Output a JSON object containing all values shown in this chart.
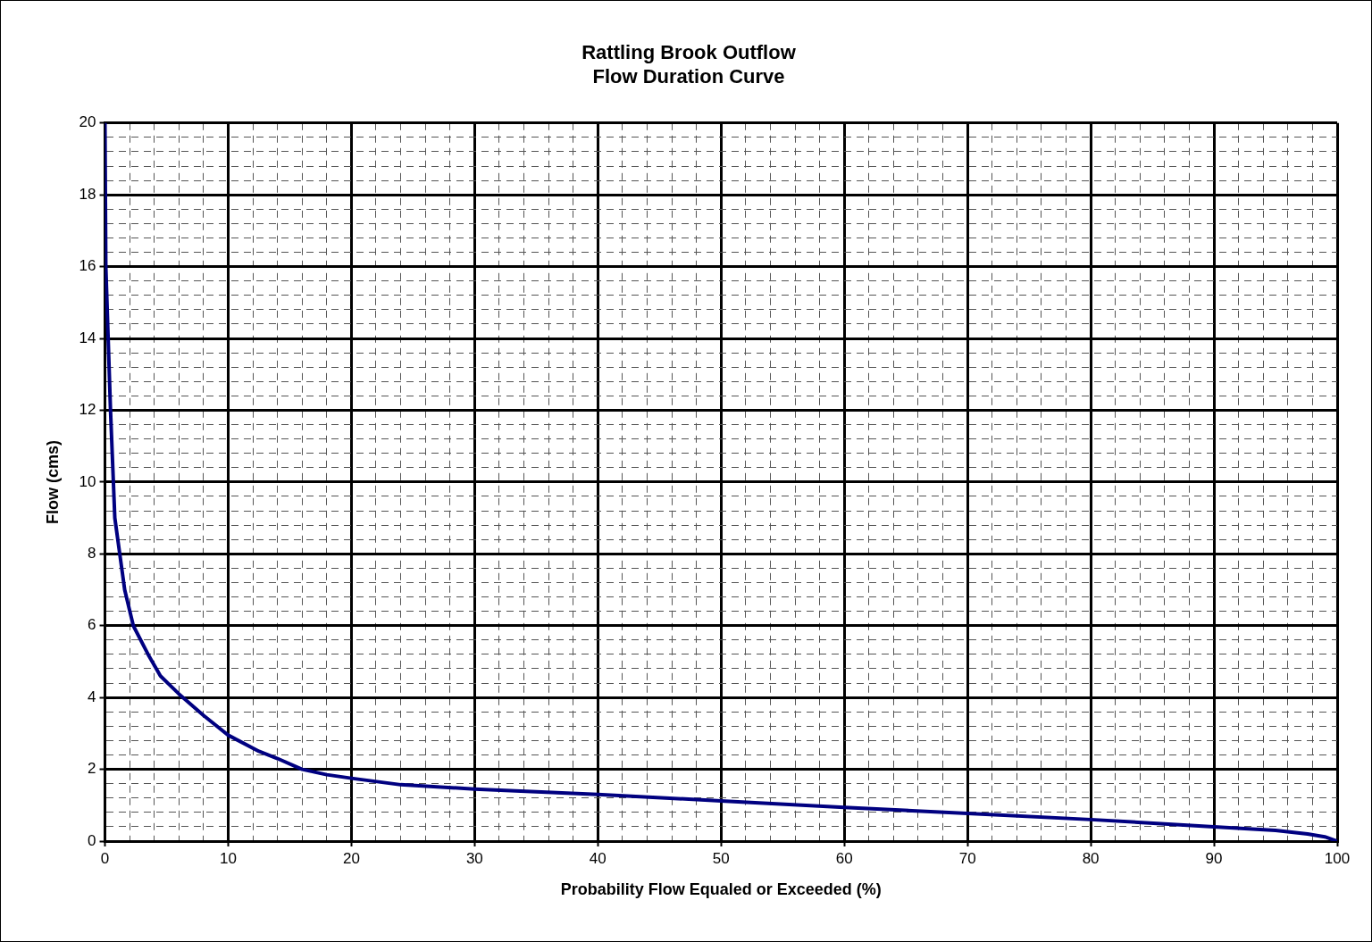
{
  "chart_data": {
    "type": "line",
    "title": [
      "Rattling Brook Outflow",
      "Flow Duration Curve"
    ],
    "xlabel": "Probability Flow Equaled or Exceeded (%)",
    "ylabel": "Flow (cms)",
    "xlim": [
      0,
      100
    ],
    "ylim": [
      0,
      20
    ],
    "xticks": [
      0,
      {
        "value": 2,
        "label": null
      },
      {
        "value": 4,
        "label": null
      },
      {
        "value": 6,
        "label": null
      },
      {
        "value": 8,
        "label": null
      },
      10,
      {
        "value": 12,
        "label": null
      },
      {
        "value": 14,
        "label": null
      },
      {
        "value": 16,
        "label": null
      },
      {
        "value": 18,
        "label": null
      },
      20,
      {
        "value": 22,
        "label": null
      },
      {
        "value": 24,
        "label": null
      },
      {
        "value": 26,
        "label": null
      },
      {
        "value": 28,
        "label": null
      },
      30,
      {
        "value": 32,
        "label": null
      },
      {
        "value": 34,
        "label": null
      },
      {
        "value": 36,
        "label": null
      },
      {
        "value": 38,
        "label": null
      },
      40,
      {
        "value": 42,
        "label": null
      },
      {
        "value": 44,
        "label": null
      },
      {
        "value": 46,
        "label": null
      },
      {
        "value": 48,
        "label": null
      },
      50,
      {
        "value": 52,
        "label": null
      },
      {
        "value": 54,
        "label": null
      },
      {
        "value": 56,
        "label": null
      },
      {
        "value": 58,
        "label": null
      },
      60,
      {
        "value": 62,
        "label": null
      },
      {
        "value": 64,
        "label": null
      },
      {
        "value": 66,
        "label": null
      },
      {
        "value": 68,
        "label": null
      },
      70,
      {
        "value": 72,
        "label": null
      },
      {
        "value": 74,
        "label": null
      },
      {
        "value": 76,
        "label": null
      },
      {
        "value": 78,
        "label": null
      },
      80,
      {
        "value": 82,
        "label": null
      },
      {
        "value": 84,
        "label": null
      },
      {
        "value": 86,
        "label": null
      },
      {
        "value": 88,
        "label": null
      },
      90,
      {
        "value": 92,
        "label": null
      },
      {
        "value": 94,
        "label": null
      },
      {
        "value": 96,
        "label": null
      },
      {
        "value": 98,
        "label": null
      },
      100
    ],
    "yticks": [
      0,
      {
        "value": 0.4,
        "label": null
      },
      {
        "value": 0.8,
        "label": null
      },
      {
        "value": 1.2,
        "label": null
      },
      {
        "value": 1.6,
        "label": null
      },
      2,
      {
        "value": 2.4,
        "label": null
      },
      {
        "value": 2.8,
        "label": null
      },
      {
        "value": 3.2,
        "label": null
      },
      {
        "value": 3.6,
        "label": null
      },
      4,
      {
        "value": 4.4,
        "label": null
      },
      {
        "value": 4.8,
        "label": null
      },
      {
        "value": 5.2,
        "label": null
      },
      {
        "value": 5.6,
        "label": null
      },
      6,
      {
        "value": 6.4,
        "label": null
      },
      {
        "value": 6.8,
        "label": null
      },
      {
        "value": 7.2,
        "label": null
      },
      {
        "value": 7.6,
        "label": null
      },
      8,
      {
        "value": 8.4,
        "label": null
      },
      {
        "value": 8.8,
        "label": null
      },
      {
        "value": 9.2,
        "label": null
      },
      {
        "value": 9.6,
        "label": null
      },
      10,
      {
        "value": 10.4,
        "label": null
      },
      {
        "value": 10.8,
        "label": null
      },
      {
        "value": 11.2,
        "label": null
      },
      {
        "value": 11.6,
        "label": null
      },
      12,
      {
        "value": 12.4,
        "label": null
      },
      {
        "value": 12.8,
        "label": null
      },
      {
        "value": 13.2,
        "label": null
      },
      {
        "value": 13.6,
        "label": null
      },
      14,
      {
        "value": 14.4,
        "label": null
      },
      {
        "value": 14.8,
        "label": null
      },
      {
        "value": 15.2,
        "label": null
      },
      {
        "value": 15.6,
        "label": null
      },
      16,
      {
        "value": 16.4,
        "label": null
      },
      {
        "value": 16.8,
        "label": null
      },
      {
        "value": 17.2,
        "label": null
      },
      {
        "value": 17.6,
        "label": null
      },
      18,
      {
        "value": 18.4,
        "label": null
      },
      {
        "value": 18.8,
        "label": null
      },
      {
        "value": 19.2,
        "label": null
      },
      {
        "value": 19.6,
        "label": null
      },
      20
    ],
    "grid": true,
    "legend": false,
    "marker": "none",
    "line_style": "solid",
    "series": [
      {
        "color": "#000080",
        "x": [
          0,
          0.07,
          0.45,
          0.8,
          1.2,
          1.6,
          2.3,
          3.5,
          4.5,
          6,
          8,
          10,
          12.5,
          14,
          16,
          18,
          20,
          24,
          30,
          40,
          50,
          60,
          70,
          80,
          90,
          95,
          97.6,
          99,
          100
        ],
        "values": [
          20,
          16,
          12,
          9,
          8,
          7,
          6,
          5.2,
          4.6,
          4.1,
          3.5,
          2.95,
          2.5,
          2.3,
          2,
          1.85,
          1.75,
          1.57,
          1.45,
          1.3,
          1.12,
          0.94,
          0.77,
          0.6,
          0.4,
          0.3,
          0.2,
          0.12,
          0
        ]
      }
    ]
  }
}
